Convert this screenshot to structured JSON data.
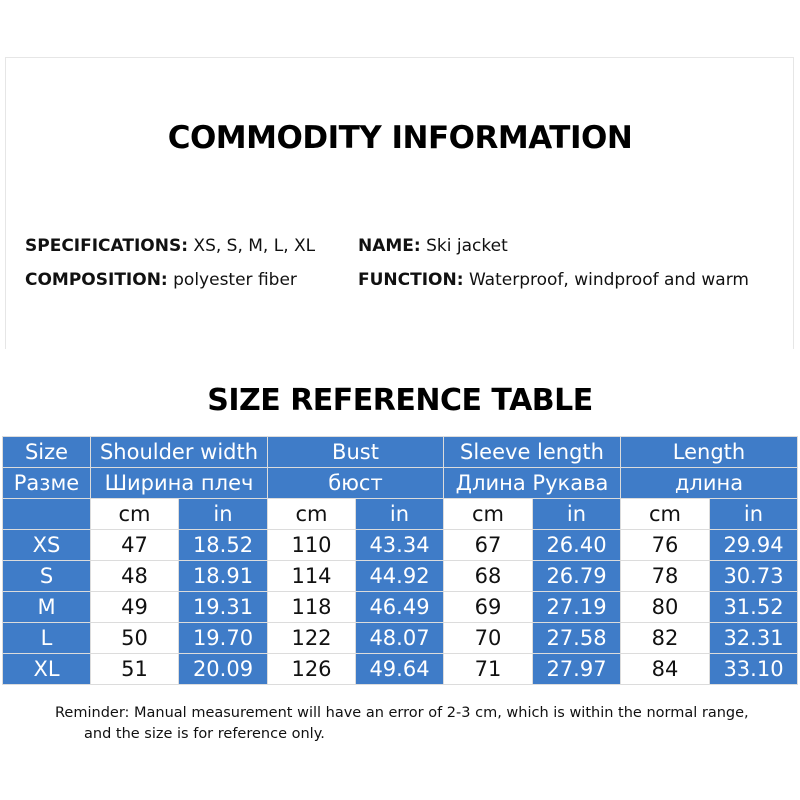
{
  "commodity": {
    "title": "COMMODITY INFORMATION",
    "specifications": {
      "label": "SPECIFICATIONS:",
      "value": "XS, S, M, L, XL"
    },
    "composition": {
      "label": "COMPOSITION:",
      "value": "polyester fiber"
    },
    "name": {
      "label": "NAME:",
      "value": "Ski jacket"
    },
    "function": {
      "label": "FUNCTION:",
      "value": "Waterproof, windproof and warm"
    }
  },
  "size_table": {
    "title": "SIZE REFERENCE TABLE",
    "accent_color": "#3f7cc8",
    "headers_en": [
      "Size",
      "Shoulder width",
      "Bust",
      "Sleeve length",
      "Length"
    ],
    "headers_ru": [
      "Разме",
      "Ширина плеч",
      "бюст",
      "Длина Рукава",
      "длина"
    ],
    "units": [
      "cm",
      "in"
    ],
    "rows": [
      [
        "XS",
        "47",
        "18.52",
        "110",
        "43.34",
        "67",
        "26.40",
        "76",
        "29.94"
      ],
      [
        "S",
        "48",
        "18.91",
        "114",
        "44.92",
        "68",
        "26.79",
        "78",
        "30.73"
      ],
      [
        "M",
        "49",
        "19.31",
        "118",
        "46.49",
        "69",
        "27.19",
        "80",
        "31.52"
      ],
      [
        "L",
        "50",
        "19.70",
        "122",
        "48.07",
        "70",
        "27.58",
        "82",
        "32.31"
      ],
      [
        "XL",
        "51",
        "20.09",
        "126",
        "49.64",
        "71",
        "27.97",
        "84",
        "33.10"
      ]
    ]
  },
  "reminder": {
    "line1": "Reminder: Manual measurement will have an error of 2-3 cm, which is within the normal range,",
    "line2": "and the size is for reference only."
  }
}
